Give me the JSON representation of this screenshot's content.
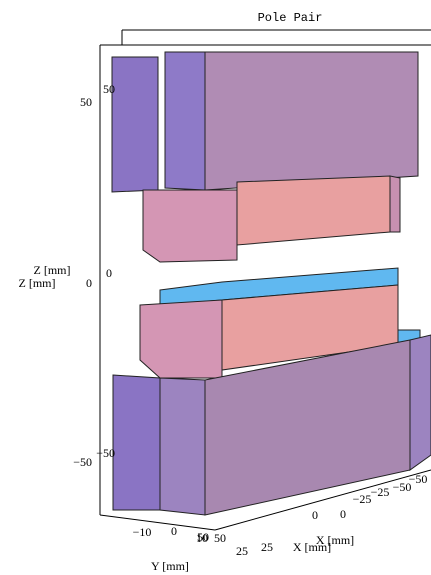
{
  "title": "Pole Pair",
  "z_axis": {
    "labels": [
      "Z [mm]",
      "Z [mm]"
    ],
    "ticks": [
      "50",
      "0",
      "−50"
    ],
    "ticks_2": [
      "50",
      "0",
      "−50"
    ]
  },
  "y_axis": {
    "label": "Y [mm]",
    "ticks": [
      "−10",
      "0",
      "10"
    ]
  },
  "x_axis": {
    "labels": [
      "X [mm]",
      "X [mm]"
    ],
    "ticks": [
      "50",
      "25",
      "0",
      "−25",
      "−50"
    ],
    "ticks_2": [
      "50",
      "25",
      "0",
      "−25",
      "−50"
    ]
  }
}
